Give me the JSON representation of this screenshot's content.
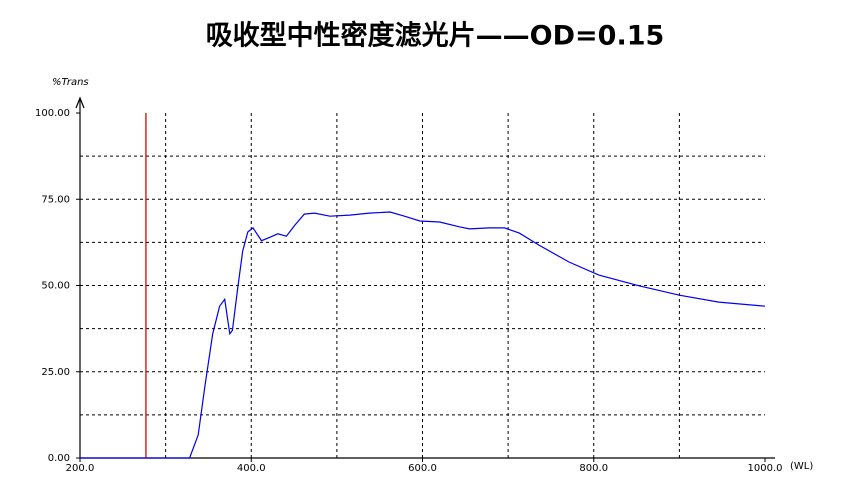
{
  "chart_data": {
    "type": "line",
    "title": "吸收型中性密度滤光片——OD=0.15",
    "y_label": "%Trans",
    "x_label": "(WL)",
    "x": [
      200,
      328,
      338,
      346,
      355,
      363,
      369,
      375,
      378,
      384,
      390,
      396,
      402,
      412,
      422,
      431,
      441,
      451,
      462,
      474,
      492,
      515,
      538,
      562,
      579,
      597,
      620,
      643,
      655,
      678,
      696,
      713,
      736,
      771,
      806,
      853,
      900,
      946,
      1000
    ],
    "values": [
      0,
      0,
      6.7,
      21,
      36,
      44,
      46,
      36,
      37,
      49,
      60,
      65.5,
      66.7,
      63,
      64,
      65,
      64.3,
      67.5,
      70.7,
      71,
      70.1,
      70.4,
      71,
      71.3,
      70.1,
      68.7,
      68.4,
      67,
      66.4,
      66.7,
      66.7,
      65.2,
      61.7,
      56.8,
      53,
      49.9,
      47.2,
      45.2,
      44
    ],
    "color": "#0000ee",
    "xlim": [
      200,
      1000
    ],
    "ylim": [
      0,
      100
    ],
    "xticks": [
      {
        "value": 200,
        "label": "200.0"
      },
      {
        "value": 400,
        "label": "400.0"
      },
      {
        "value": 600,
        "label": "600.0"
      },
      {
        "value": 800,
        "label": "800.0"
      },
      {
        "value": 1000,
        "label": "1000.0"
      }
    ],
    "yticks": [
      {
        "value": 0,
        "label": "0.00"
      },
      {
        "value": 25,
        "label": "25.00"
      },
      {
        "value": 50,
        "label": "50.00"
      },
      {
        "value": 75,
        "label": "75.00"
      },
      {
        "value": 100,
        "label": "100.00"
      }
    ],
    "xgrid": [
      300,
      400,
      500,
      600,
      700,
      800,
      900
    ],
    "ygrid": [
      12.5,
      25,
      37.5,
      50,
      62.5,
      75,
      87.5
    ],
    "marker_x": 277,
    "marker_color": "#e00000"
  }
}
